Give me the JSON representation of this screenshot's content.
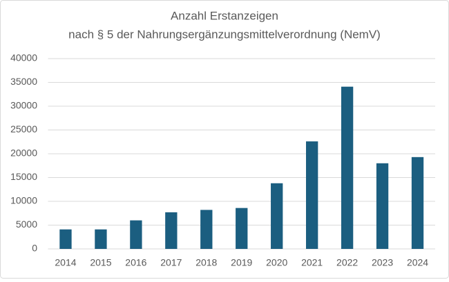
{
  "chart_data": {
    "type": "bar",
    "title": "Anzahl Erstanzeigen",
    "subtitle": "nach § 5 der Nahrungsergänzungsmittelverordnung (NemV)",
    "categories": [
      "2014",
      "2015",
      "2016",
      "2017",
      "2018",
      "2019",
      "2020",
      "2021",
      "2022",
      "2023",
      "2024"
    ],
    "values": [
      4100,
      4100,
      6000,
      7700,
      8200,
      8600,
      13800,
      22600,
      34100,
      18000,
      19300
    ],
    "color": "#1b5e80",
    "ylim": [
      0,
      40000
    ],
    "yticks": [
      0,
      5000,
      10000,
      15000,
      20000,
      25000,
      30000,
      35000,
      40000
    ],
    "grid": true
  }
}
